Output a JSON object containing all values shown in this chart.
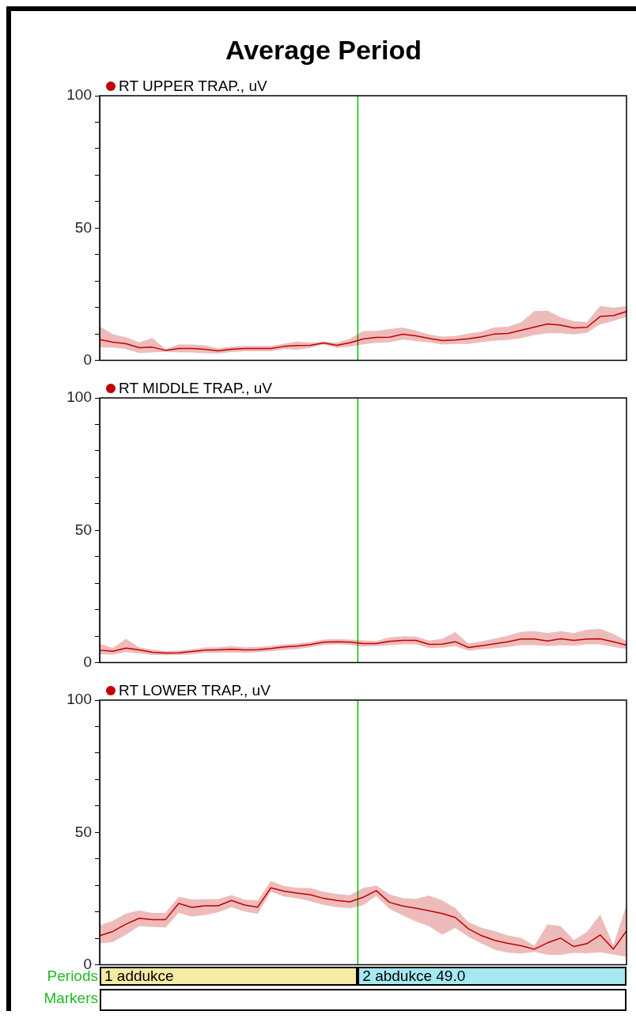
{
  "chart_data": [
    {
      "type": "line",
      "title": "Average Period",
      "legend": "top left",
      "tick_labels": "y",
      "ylim": [
        0,
        100
      ],
      "yticks": [
        0,
        {
          "value": 10,
          "label": null
        },
        {
          "value": 20,
          "label": null
        },
        {
          "value": 30,
          "label": null
        },
        {
          "value": 40,
          "label": null
        },
        50,
        {
          "value": 60,
          "label": null
        },
        {
          "value": 70,
          "label": null
        },
        {
          "value": 80,
          "label": null
        },
        {
          "value": 90,
          "label": null
        },
        100
      ],
      "categories": [
        null,
        null,
        null,
        null,
        null,
        null,
        null,
        null,
        null,
        null,
        null,
        null,
        null,
        null,
        null,
        null,
        null,
        null,
        null,
        null,
        null,
        null,
        null,
        null,
        null,
        null,
        null,
        null,
        null,
        null,
        null,
        null,
        null,
        null,
        null,
        null,
        null,
        null,
        null,
        null,
        null
      ],
      "series": [
        {
          "name": "RT UPPER TRAP., uV",
          "color": "#c00000",
          "values": [
            7.9,
            6.9,
            6.3,
            4.8,
            5.0,
            3.8,
            4.5,
            4.5,
            4.2,
            3.6,
            4.2,
            4.5,
            4.5,
            4.5,
            5.3,
            5.6,
            5.7,
            6.6,
            5.7,
            6.7,
            8.1,
            8.7,
            8.8,
            9.9,
            9.3,
            8.3,
            7.5,
            7.7,
            8.2,
            8.9,
            10.0,
            10.2,
            11.4,
            12.6,
            13.8,
            13.3,
            12.3,
            12.5,
            16.6,
            16.9,
            18.5
          ],
          "lower": [
            4.9,
            4.9,
            4.3,
            2.8,
            3.0,
            3.3,
            3.0,
            3.0,
            2.7,
            2.6,
            3.2,
            3.5,
            3.5,
            3.5,
            4.3,
            4.1,
            4.7,
            6.1,
            4.7,
            5.2,
            6.1,
            6.7,
            6.8,
            7.9,
            7.3,
            6.8,
            6.0,
            6.2,
            6.2,
            6.9,
            7.5,
            7.7,
            8.4,
            9.6,
            10.3,
            10.3,
            9.8,
            10.5,
            13.6,
            14.9,
            16.5
          ],
          "upper": [
            12.9,
            9.9,
            8.8,
            6.8,
            8.5,
            4.3,
            6.0,
            6.0,
            5.7,
            4.6,
            5.2,
            5.5,
            5.5,
            5.5,
            6.3,
            7.1,
            6.7,
            7.1,
            6.7,
            8.2,
            11.1,
            11.2,
            11.8,
            12.4,
            11.3,
            9.8,
            9.0,
            9.2,
            10.2,
            10.9,
            12.5,
            12.7,
            14.4,
            18.6,
            18.8,
            16.3,
            14.8,
            14.5,
            20.6,
            19.9,
            20.5
          ]
        }
      ]
    },
    {
      "type": "line",
      "legend": "top left",
      "tick_labels": "y",
      "ylim": [
        0,
        100
      ],
      "yticks": [
        0,
        {
          "value": 10,
          "label": null
        },
        {
          "value": 20,
          "label": null
        },
        {
          "value": 30,
          "label": null
        },
        {
          "value": 40,
          "label": null
        },
        50,
        {
          "value": 60,
          "label": null
        },
        {
          "value": 70,
          "label": null
        },
        {
          "value": 80,
          "label": null
        },
        {
          "value": 90,
          "label": null
        },
        100
      ],
      "categories": [
        null,
        null,
        null,
        null,
        null,
        null,
        null,
        null,
        null,
        null,
        null,
        null,
        null,
        null,
        null,
        null,
        null,
        null,
        null,
        null,
        null,
        null,
        null,
        null,
        null,
        null,
        null,
        null,
        null,
        null,
        null,
        null,
        null,
        null,
        null,
        null,
        null,
        null,
        null,
        null,
        null
      ],
      "series": [
        {
          "name": "RT MIDDLE TRAP., uV",
          "color": "#c00000",
          "values": [
            4.7,
            4.3,
            5.5,
            4.8,
            3.9,
            3.6,
            3.7,
            4.2,
            4.7,
            4.8,
            5.0,
            4.8,
            4.9,
            5.3,
            5.9,
            6.2,
            6.8,
            7.7,
            7.9,
            7.7,
            7.2,
            7.2,
            8.0,
            8.4,
            8.4,
            6.9,
            7.0,
            7.9,
            5.7,
            6.4,
            7.1,
            7.9,
            8.9,
            8.9,
            8.2,
            9.0,
            8.4,
            8.9,
            9.0,
            7.9,
            6.6
          ],
          "lower": [
            3.2,
            3.0,
            4.0,
            3.5,
            2.9,
            2.8,
            2.9,
            3.2,
            3.7,
            3.8,
            3.8,
            3.8,
            3.9,
            4.3,
            4.8,
            5.1,
            5.8,
            6.7,
            6.9,
            6.7,
            6.0,
            6.2,
            6.6,
            6.9,
            6.9,
            5.5,
            5.6,
            6.2,
            4.5,
            5.0,
            5.4,
            5.9,
            6.6,
            6.6,
            6.2,
            6.6,
            6.4,
            6.9,
            6.9,
            5.9,
            5.1
          ],
          "upper": [
            7.2,
            5.5,
            9.0,
            5.8,
            4.9,
            4.4,
            4.5,
            5.0,
            5.7,
            5.8,
            6.3,
            5.8,
            5.9,
            6.3,
            6.9,
            7.2,
            7.8,
            8.7,
            8.9,
            8.7,
            8.4,
            8.2,
            9.5,
            9.9,
            9.9,
            8.3,
            9.0,
            11.5,
            7.2,
            8.0,
            9.1,
            10.2,
            11.6,
            11.9,
            11.2,
            11.9,
            11.2,
            12.4,
            12.8,
            10.9,
            8.1
          ]
        }
      ]
    },
    {
      "type": "line",
      "legend": "top left",
      "tick_labels": "y",
      "ylim": [
        0,
        100
      ],
      "yticks": [
        0,
        {
          "value": 10,
          "label": null
        },
        {
          "value": 20,
          "label": null
        },
        {
          "value": 30,
          "label": null
        },
        {
          "value": 40,
          "label": null
        },
        50,
        {
          "value": 60,
          "label": null
        },
        {
          "value": 70,
          "label": null
        },
        {
          "value": 80,
          "label": null
        },
        {
          "value": 90,
          "label": null
        },
        100
      ],
      "annotations": [
        "Periods",
        "1 addukce",
        "2 abdukce 49.0",
        "Markers"
      ],
      "categories": [
        null,
        null,
        null,
        null,
        null,
        null,
        null,
        null,
        null,
        null,
        null,
        null,
        null,
        null,
        null,
        null,
        null,
        null,
        null,
        null,
        null,
        null,
        null,
        null,
        null,
        null,
        null,
        null,
        null,
        null,
        null,
        null,
        null,
        null,
        null,
        null,
        null,
        null,
        null,
        null,
        null
      ],
      "series": [
        {
          "name": "RT LOWER TRAP., uV",
          "color": "#c00000",
          "values": [
            11.0,
            12.6,
            15.4,
            17.6,
            17.1,
            17.1,
            23.2,
            21.7,
            22.3,
            22.3,
            24.3,
            22.6,
            21.8,
            29.1,
            27.8,
            27.1,
            26.5,
            25.1,
            24.3,
            23.8,
            25.5,
            28.0,
            23.6,
            22.2,
            21.4,
            20.4,
            19.4,
            17.9,
            13.6,
            11.0,
            9.2,
            8.1,
            7.2,
            5.9,
            8.3,
            10.1,
            6.9,
            8.0,
            11.3,
            5.9,
            12.8
          ],
          "lower": [
            8.0,
            8.6,
            11.4,
            14.6,
            14.3,
            14.1,
            19.7,
            18.2,
            18.8,
            19.8,
            21.8,
            20.1,
            19.3,
            27.6,
            25.8,
            25.1,
            24.0,
            22.6,
            21.8,
            21.3,
            22.5,
            26.0,
            21.1,
            18.7,
            16.4,
            14.6,
            11.4,
            13.9,
            10.6,
            8.0,
            5.7,
            4.6,
            4.2,
            4.9,
            3.8,
            3.8,
            4.5,
            4.4,
            4.7,
            3.9,
            3.0
          ],
          "upper": [
            15.0,
            16.6,
            19.4,
            20.6,
            19.6,
            19.6,
            25.7,
            24.7,
            24.8,
            24.8,
            26.3,
            24.6,
            24.3,
            31.6,
            29.8,
            29.1,
            29.0,
            27.6,
            26.8,
            26.3,
            29.0,
            30.0,
            26.6,
            25.2,
            24.9,
            26.2,
            24.4,
            21.4,
            16.1,
            14.0,
            12.7,
            11.1,
            10.2,
            7.2,
            15.3,
            14.6,
            9.4,
            12.4,
            19.0,
            7.4,
            22.7
          ]
        }
      ]
    }
  ]
}
